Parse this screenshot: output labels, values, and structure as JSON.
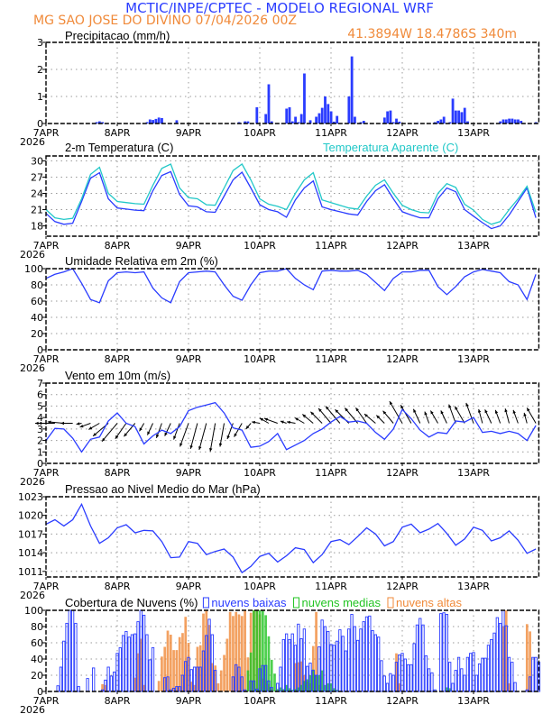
{
  "header": {
    "title": "MCTIC/INPE/CPTEC - MODELO REGIONAL WRF",
    "location_date": "MG SAO JOSE DO DIVINO   07/04/2026 00Z",
    "coordinates": "41.3894W 18.4786S 340m"
  },
  "colors": {
    "title": "#2a3cff",
    "subtitle": "#f08a3a",
    "series_blue": "#2a3cff",
    "apparent_temp": "#22c8c8",
    "medium_clouds": "#22c422",
    "high_clouds": "#f08a3a",
    "grid": "#999999"
  },
  "time_axis": {
    "labels": [
      "7APR",
      "8APR",
      "9APR",
      "10APR",
      "11APR",
      "12APR",
      "13APR"
    ],
    "year": "2026",
    "start": "07/04/2026 00Z"
  },
  "chart_data": [
    {
      "type": "bar",
      "title": "Precipitacao (mm/h)",
      "ylim": [
        0,
        3
      ],
      "yticks": [
        "0",
        "1",
        "2",
        "3"
      ],
      "grid": true,
      "interval_hours": 1,
      "series": [
        {
          "values": [
            0,
            0,
            0,
            0,
            0,
            0,
            0,
            0,
            0,
            0,
            0,
            0,
            0,
            0,
            0,
            0,
            0,
            0.05,
            0.08,
            0.05,
            0,
            0,
            0,
            0,
            0,
            0,
            0,
            0,
            0,
            0,
            0,
            0,
            0,
            0,
            0.05,
            0.15,
            0.13,
            0.17,
            0.22,
            0.2,
            0,
            0,
            0,
            0,
            0.12,
            0,
            0,
            0,
            0,
            0,
            0,
            0,
            0,
            0,
            0,
            0,
            0,
            0,
            0,
            0,
            0,
            0,
            0,
            0,
            0,
            0.05,
            0,
            0.08,
            0.08,
            0,
            0,
            0.6,
            0,
            0,
            0.35,
            1.45,
            0.08,
            0,
            0,
            0,
            0,
            0.55,
            0.6,
            0.08,
            0.25,
            0.05,
            0.35,
            1.85,
            0,
            0.12,
            0,
            0.25,
            0.38,
            0.58,
            1.0,
            0.72,
            0.45,
            0.07,
            0.28,
            0,
            0,
            0,
            1.0,
            2.48,
            0.25,
            0,
            0.05,
            0.1,
            0,
            0,
            0,
            0,
            0,
            0,
            0.22,
            0.45,
            0.48,
            0.05,
            0.18,
            0.07,
            0,
            0,
            0,
            0,
            0,
            0,
            0,
            0,
            0,
            0,
            0,
            0.05,
            0.1,
            0.15,
            0.25,
            0,
            0.05,
            0.92,
            0.48,
            0.48,
            0.42,
            0.58,
            0.08,
            0,
            0,
            0,
            0,
            0,
            0,
            0,
            0,
            0,
            0,
            0.08,
            0.15,
            0.15,
            0.18,
            0.18,
            0.15,
            0.15,
            0.1,
            0,
            0,
            0,
            0,
            0.05,
            0
          ]
        }
      ]
    },
    {
      "type": "line",
      "title": "2-m Temperatura (C)",
      "ylim": [
        16.1,
        30.9
      ],
      "yticks": [
        "18",
        "21",
        "24",
        "27",
        "30"
      ],
      "grid": true,
      "interval_hours": 3,
      "series": [
        {
          "name": "",
          "values": [
            20.3,
            18.8,
            18.3,
            18.5,
            22.5,
            26.8,
            27.8,
            23.0,
            21.3,
            21.1,
            20.9,
            20.8,
            24.5,
            27.3,
            28.0,
            23.8,
            21.7,
            21.5,
            20.6,
            20.5,
            23.5,
            26.5,
            27.9,
            25.0,
            21.9,
            21.0,
            20.6,
            19.6,
            22.8,
            25.0,
            26.3,
            21.5,
            21.0,
            20.6,
            20.2,
            20.0,
            22.5,
            24.5,
            25.6,
            23.0,
            20.6,
            20.0,
            19.5,
            19.5,
            23.0,
            25.0,
            24.3,
            21.0,
            19.8,
            18.6,
            17.5,
            18.0,
            20.0,
            22.5,
            25.0,
            19.5
          ]
        },
        {
          "name": "Temperatura Aparente (C)",
          "values": [
            21.0,
            19.5,
            19.2,
            19.4,
            23.0,
            27.5,
            28.8,
            24.0,
            22.5,
            22.3,
            22.1,
            22.0,
            25.5,
            28.6,
            29.4,
            25.0,
            23.2,
            23.0,
            21.9,
            21.8,
            25.0,
            28.2,
            29.4,
            26.5,
            23.0,
            22.0,
            21.6,
            21.0,
            24.0,
            26.5,
            27.8,
            22.8,
            22.3,
            21.8,
            21.3,
            21.1,
            23.5,
            25.5,
            26.5,
            24.0,
            21.8,
            21.0,
            20.5,
            20.4,
            24.0,
            25.8,
            25.1,
            22.0,
            20.9,
            19.2,
            18.3,
            18.8,
            21.0,
            23.0,
            25.3,
            20.5
          ]
        }
      ]
    },
    {
      "type": "line",
      "title": "Umidade Relativa em 2m (%)",
      "ylim": [
        0,
        100
      ],
      "yticks": [
        "0",
        "20",
        "40",
        "60",
        "80",
        "100"
      ],
      "grid": true,
      "interval_hours": 3,
      "series": [
        {
          "values": [
            88,
            93,
            96,
            100,
            82,
            62,
            58,
            85,
            95,
            96,
            95,
            96,
            76,
            64,
            58,
            84,
            95,
            96,
            97,
            96,
            80,
            66,
            61,
            80,
            95,
            97,
            97,
            100,
            88,
            80,
            74,
            97,
            98,
            97,
            97,
            98,
            93,
            83,
            73,
            88,
            96,
            96,
            98,
            98,
            78,
            68,
            78,
            90,
            96,
            99,
            97,
            95,
            84,
            80,
            62,
            93
          ]
        }
      ]
    },
    {
      "type": "line",
      "title": "Vento em 10m (m/s)",
      "ylim": [
        0,
        7
      ],
      "yticks": [
        "0",
        "1",
        "2",
        "3",
        "4",
        "5",
        "6",
        "7"
      ],
      "grid": true,
      "interval_hours": 3,
      "series": [
        {
          "values": [
            2.0,
            3.05,
            3.0,
            2.2,
            1.0,
            2.1,
            2.3,
            3.7,
            4.4,
            3.5,
            3.2,
            1.7,
            2.4,
            2.9,
            2.6,
            3.2,
            4.6,
            4.9,
            5.1,
            5.3,
            4.4,
            3.1,
            2.9,
            1.4,
            1.5,
            1.9,
            2.6,
            1.2,
            1.6,
            2.0,
            2.6,
            3.0,
            3.6,
            4.1,
            3.6,
            3.7,
            3.5,
            2.7,
            2.1,
            3.0,
            4.7,
            3.9,
            2.9,
            2.3,
            2.7,
            2.6,
            3.7,
            3.6,
            4.0,
            2.7,
            2.8,
            2.6,
            2.8,
            2.6,
            2.0,
            3.3
          ]
        }
      ],
      "direction_deg": [
        90,
        90,
        95,
        90,
        80,
        70,
        60,
        50,
        40,
        35,
        40,
        30,
        25,
        20,
        25,
        20,
        20,
        15,
        15,
        10,
        10,
        20,
        30,
        40,
        100,
        120,
        110,
        110,
        100,
        120,
        130,
        135,
        140,
        140,
        135,
        140,
        145,
        130,
        135,
        140,
        150,
        150,
        155,
        160,
        150,
        155,
        160,
        150,
        160,
        165,
        155,
        160,
        165,
        160,
        165,
        150
      ]
    },
    {
      "type": "line",
      "title": "Pressao ao Nivel Medio do Mar (hPa)",
      "ylim": [
        1010.1,
        1023
      ],
      "yticks": [
        "1011",
        "1014",
        "1017",
        "1020",
        "1023"
      ],
      "grid": true,
      "interval_hours": 3,
      "series": [
        {
          "values": [
            1018.6,
            1019.3,
            1018.3,
            1019.3,
            1021.8,
            1018.3,
            1015.5,
            1016.4,
            1018.0,
            1018.5,
            1017.2,
            1017.6,
            1017.5,
            1015.8,
            1013.2,
            1013.3,
            1015.8,
            1015.5,
            1013.7,
            1014.2,
            1014.6,
            1013.3,
            1010.8,
            1011.8,
            1013.4,
            1013.9,
            1012.5,
            1013.5,
            1014.8,
            1014.5,
            1012.4,
            1013.7,
            1015.8,
            1016.1,
            1015.3,
            1016.6,
            1018.0,
            1017.0,
            1015.1,
            1015.8,
            1018.1,
            1018.6,
            1017.2,
            1017.8,
            1018.7,
            1017.1,
            1015.2,
            1016.2,
            1018.1,
            1017.6,
            1015.9,
            1016.4,
            1017.5,
            1016.0,
            1013.9,
            1014.6
          ]
        }
      ]
    },
    {
      "type": "bar",
      "title": "Cobertura de Nuvens (%)",
      "ylim": [
        0,
        100
      ],
      "yticks": [
        "0",
        "20",
        "40",
        "60",
        "80",
        "100"
      ],
      "grid": true,
      "interval_hours": 1,
      "legend": "top",
      "series": [
        {
          "name": "nuvens baixas",
          "values": [
            0,
            0,
            0,
            0,
            7,
            30,
            62,
            84,
            100,
            100,
            84,
            6,
            0,
            0,
            16,
            0,
            29,
            0,
            0,
            2,
            14,
            30,
            19,
            24,
            47,
            54,
            69,
            74,
            67,
            70,
            71,
            86,
            100,
            94,
            70,
            39,
            54,
            0,
            0,
            0,
            17,
            18,
            2,
            4,
            6,
            6,
            20,
            37,
            42,
            27,
            30,
            30,
            30,
            50,
            69,
            89,
            70,
            26,
            0,
            0,
            0,
            0,
            0,
            18,
            33,
            30,
            18,
            2,
            0,
            13,
            13,
            3,
            28,
            32,
            32,
            13,
            5,
            0,
            10,
            30,
            64,
            71,
            64,
            71,
            57,
            83,
            65,
            77,
            31,
            35,
            26,
            20,
            55,
            88,
            80,
            74,
            58,
            57,
            62,
            76,
            68,
            50,
            77,
            95,
            80,
            63,
            77,
            86,
            92,
            93,
            75,
            70,
            67,
            38,
            19,
            10,
            22,
            20,
            36,
            45,
            47,
            40,
            33,
            33,
            59,
            82,
            90,
            82,
            44,
            28,
            23,
            2,
            0,
            96,
            97,
            95,
            36,
            10,
            26,
            42,
            28,
            20,
            42,
            47,
            48,
            20,
            34,
            41,
            41,
            57,
            64,
            72,
            91,
            84,
            100,
            81,
            42,
            36,
            11,
            0,
            0,
            0,
            2,
            18,
            42,
            42,
            36
          ]
        },
        {
          "name": "nuvens medias",
          "values": [
            0,
            0,
            0,
            0,
            0,
            0,
            0,
            0,
            0,
            0,
            0,
            0,
            0,
            0,
            0,
            0,
            0,
            0,
            0,
            0,
            0,
            0,
            0,
            0,
            0,
            0,
            0,
            0,
            0,
            0,
            0,
            0,
            0,
            0,
            0,
            0,
            0,
            0,
            0,
            0,
            0,
            0,
            0,
            0,
            0,
            0,
            0,
            0,
            0,
            0,
            0,
            0,
            0,
            0,
            0,
            0,
            0,
            0,
            0,
            0,
            0,
            0,
            0,
            0,
            0,
            0,
            0,
            0,
            26,
            48,
            100,
            100,
            100,
            100,
            94,
            68,
            39,
            22,
            3,
            5,
            3,
            8,
            4,
            2,
            3,
            5,
            8,
            13,
            15,
            20,
            27,
            20,
            20,
            26,
            8,
            10,
            10,
            4,
            2,
            0,
            0,
            0,
            0,
            0,
            0,
            0,
            0,
            0,
            0,
            0,
            0,
            0,
            0,
            0,
            0,
            0,
            0,
            0,
            0,
            0,
            0,
            0,
            0,
            0,
            0,
            0,
            0,
            0,
            0,
            0,
            0,
            0,
            0,
            0,
            0,
            5,
            4,
            0,
            0,
            0,
            0,
            0,
            0,
            0,
            0,
            0,
            0,
            0,
            0,
            0,
            0,
            0,
            0,
            0,
            0,
            0,
            0,
            0,
            0,
            0,
            0,
            0,
            0,
            0,
            0,
            0,
            0
          ]
        },
        {
          "name": "nuvens altas",
          "values": [
            0,
            0,
            0,
            0,
            0,
            0,
            0,
            0,
            0,
            0,
            0,
            0,
            0,
            0,
            0,
            0,
            0,
            0,
            0,
            9,
            8,
            0,
            0,
            0,
            0,
            0,
            0,
            0,
            0,
            0,
            17,
            47,
            65,
            8,
            0,
            0,
            0,
            0,
            13,
            43,
            55,
            75,
            70,
            51,
            51,
            67,
            72,
            92,
            60,
            12,
            8,
            55,
            57,
            96,
            100,
            82,
            35,
            32,
            10,
            26,
            45,
            65,
            98,
            93,
            98,
            95,
            93,
            100,
            42,
            97,
            100,
            100,
            95,
            16,
            14,
            9,
            3,
            0,
            0,
            0,
            0,
            0,
            0,
            0,
            35,
            36,
            37,
            20,
            12,
            10,
            56,
            98,
            8,
            0,
            0,
            0,
            0,
            0,
            0,
            0,
            0,
            0,
            0,
            0,
            0,
            0,
            0,
            0,
            0,
            0,
            0,
            0,
            0,
            0,
            0,
            0,
            0,
            0,
            47,
            10,
            0,
            0,
            0,
            0,
            0,
            0,
            0,
            0,
            0,
            0,
            0,
            0,
            0,
            0,
            0,
            0,
            0,
            0,
            0,
            0,
            0,
            0,
            0,
            0,
            0,
            0,
            0,
            0,
            0,
            0,
            0,
            0,
            0,
            0,
            80,
            100,
            10,
            0,
            0,
            0,
            0,
            0,
            83,
            74,
            0,
            0,
            0
          ]
        }
      ]
    }
  ]
}
